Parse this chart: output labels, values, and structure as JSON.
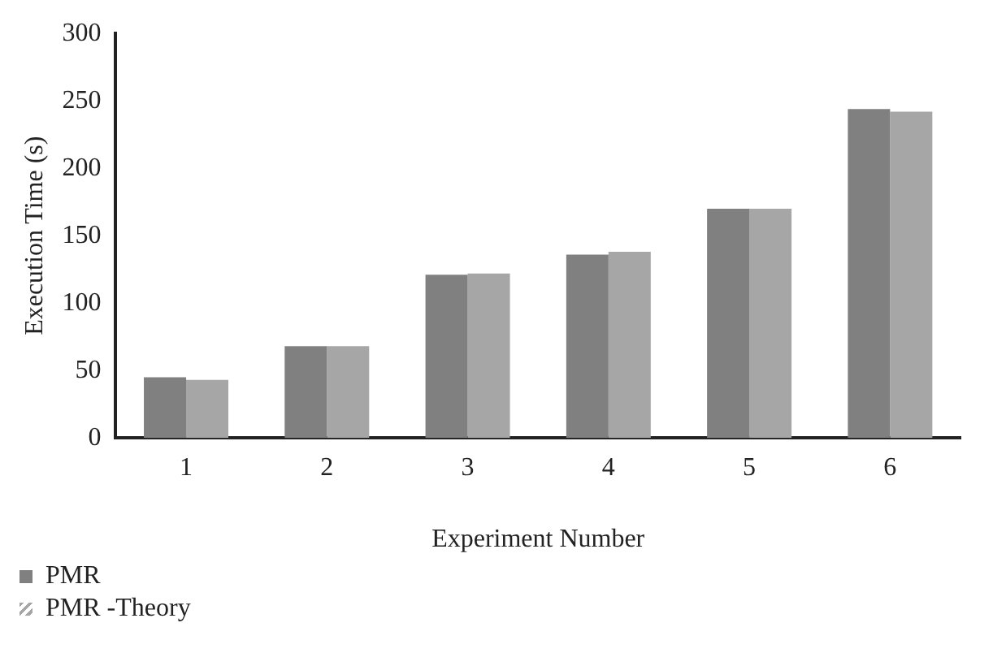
{
  "chart_data": {
    "type": "bar",
    "xlabel": "Experiment Number",
    "ylabel": "Execution Time (s)",
    "categories": [
      "1",
      "2",
      "3",
      "4",
      "5",
      "6"
    ],
    "series": [
      {
        "name": "PMR",
        "color": "#808080",
        "values": [
          45,
          68,
          121,
          136,
          170,
          244
        ]
      },
      {
        "name": "PMR -Theory",
        "color": "#a6a6a6",
        "values": [
          43,
          68,
          122,
          138,
          170,
          242
        ]
      }
    ],
    "ylim": [
      0,
      300
    ],
    "yticks": [
      0,
      50,
      100,
      150,
      200,
      250,
      300
    ],
    "grid": false,
    "legend": "bottom left"
  }
}
